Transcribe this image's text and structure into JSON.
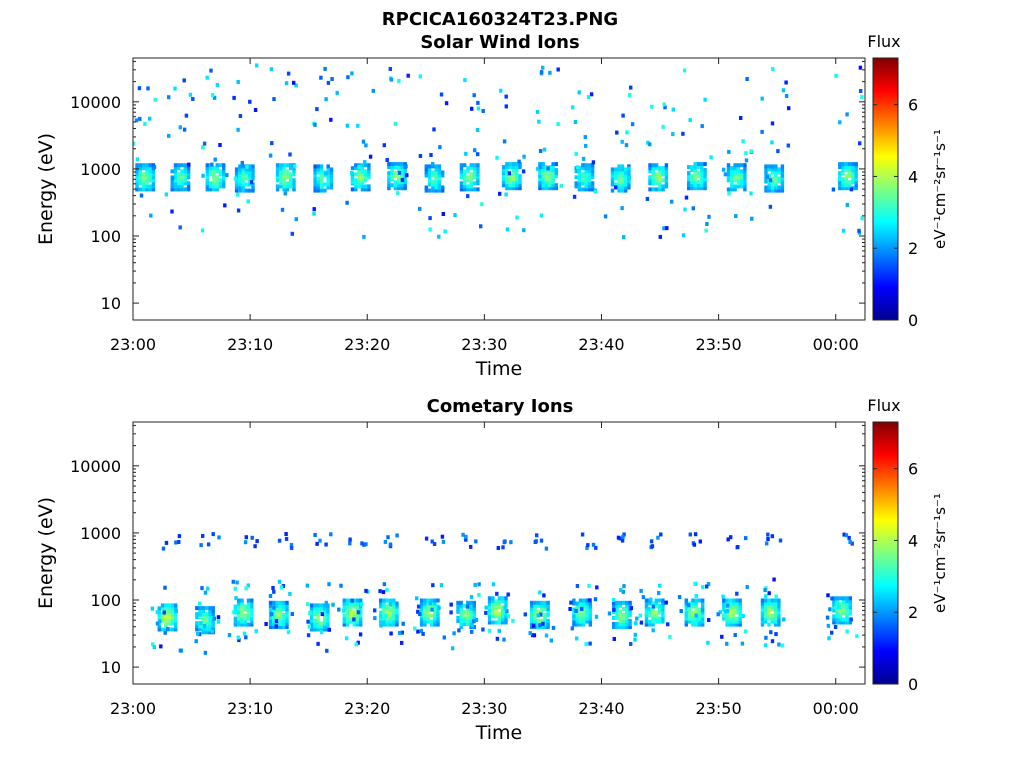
{
  "figure_title": "RPCICA160324T23.PNG",
  "chart_data": [
    {
      "type": "heatmap",
      "title": "Solar Wind Ions",
      "xlabel": "Time",
      "ylabel": "Energy (eV)",
      "x_ticks": [
        "23:00",
        "23:10",
        "23:20",
        "23:30",
        "23:40",
        "23:50",
        "00:00"
      ],
      "x_range_minutes": [
        0,
        62.5
      ],
      "y_scale": "log",
      "y_range": [
        5.6,
        45000
      ],
      "y_ticks": [
        {
          "value": 10,
          "label": "10"
        },
        {
          "value": 100,
          "label": "100"
        },
        {
          "value": 1000,
          "label": "1000"
        },
        {
          "value": 10000,
          "label": "10000"
        }
      ],
      "colorbar": {
        "title": "Flux",
        "label": "eV⁻¹cm⁻²sr⁻¹s⁻¹",
        "range": [
          0,
          7.3
        ],
        "ticks": [
          {
            "value": 0,
            "label": "0"
          },
          {
            "value": 2,
            "label": "2"
          },
          {
            "value": 4,
            "label": "4"
          },
          {
            "value": 6,
            "label": "6"
          }
        ],
        "colormap": "jet"
      },
      "bursts": [
        {
          "t": 0.9,
          "e": 750,
          "flux": 3.9
        },
        {
          "t": 3.9,
          "e": 750,
          "flux": 3.6
        },
        {
          "t": 6.9,
          "e": 750,
          "flux": 4.0
        },
        {
          "t": 9.4,
          "e": 720,
          "flux": 3.7
        },
        {
          "t": 12.9,
          "e": 750,
          "flux": 4.0
        },
        {
          "t": 16.1,
          "e": 720,
          "flux": 3.7
        },
        {
          "t": 19.3,
          "e": 750,
          "flux": 3.9
        },
        {
          "t": 22.4,
          "e": 780,
          "flux": 3.9
        },
        {
          "t": 25.6,
          "e": 720,
          "flux": 3.6
        },
        {
          "t": 28.6,
          "e": 750,
          "flux": 3.9
        },
        {
          "t": 32.2,
          "e": 780,
          "flux": 4.0
        },
        {
          "t": 35.3,
          "e": 780,
          "flux": 4.0
        },
        {
          "t": 38.4,
          "e": 750,
          "flux": 3.6
        },
        {
          "t": 41.5,
          "e": 720,
          "flux": 3.8
        },
        {
          "t": 44.7,
          "e": 750,
          "flux": 4.0
        },
        {
          "t": 48.0,
          "e": 780,
          "flux": 3.9
        },
        {
          "t": 51.4,
          "e": 750,
          "flux": 3.8
        },
        {
          "t": 54.6,
          "e": 720,
          "flux": 3.7
        },
        {
          "t": 60.9,
          "e": 780,
          "flux": 3.9
        }
      ]
    },
    {
      "type": "heatmap",
      "title": "Cometary Ions",
      "xlabel": "Time",
      "ylabel": "Energy (eV)",
      "x_ticks": [
        "23:00",
        "23:10",
        "23:20",
        "23:30",
        "23:40",
        "23:50",
        "00:00"
      ],
      "x_range_minutes": [
        0,
        62.5
      ],
      "y_scale": "log",
      "y_range": [
        5.6,
        45000
      ],
      "y_ticks": [
        {
          "value": 10,
          "label": "10"
        },
        {
          "value": 100,
          "label": "100"
        },
        {
          "value": 1000,
          "label": "1000"
        },
        {
          "value": 10000,
          "label": "10000"
        }
      ],
      "colorbar": {
        "title": "Flux",
        "label": "eV⁻¹cm⁻²sr⁻¹s⁻¹",
        "range": [
          0,
          7.3
        ],
        "ticks": [
          {
            "value": 0,
            "label": "0"
          },
          {
            "value": 2,
            "label": "2"
          },
          {
            "value": 4,
            "label": "4"
          },
          {
            "value": 6,
            "label": "6"
          }
        ],
        "colormap": "jet"
      },
      "bursts": [
        {
          "t": 2.8,
          "e": 55,
          "flux": 4.3
        },
        {
          "t": 6.0,
          "e": 50,
          "flux": 3.8
        },
        {
          "t": 9.3,
          "e": 65,
          "flux": 4.2
        },
        {
          "t": 12.3,
          "e": 60,
          "flux": 4.0
        },
        {
          "t": 15.8,
          "e": 55,
          "flux": 4.1
        },
        {
          "t": 18.6,
          "e": 65,
          "flux": 4.4
        },
        {
          "t": 21.7,
          "e": 65,
          "flux": 4.2
        },
        {
          "t": 25.2,
          "e": 65,
          "flux": 4.2
        },
        {
          "t": 28.3,
          "e": 60,
          "flux": 3.9
        },
        {
          "t": 31.0,
          "e": 70,
          "flux": 4.3
        },
        {
          "t": 34.6,
          "e": 60,
          "flux": 4.2
        },
        {
          "t": 38.2,
          "e": 65,
          "flux": 4.0
        },
        {
          "t": 41.6,
          "e": 60,
          "flux": 4.0
        },
        {
          "t": 44.4,
          "e": 65,
          "flux": 4.1
        },
        {
          "t": 47.8,
          "e": 65,
          "flux": 4.2
        },
        {
          "t": 51.0,
          "e": 65,
          "flux": 4.3
        },
        {
          "t": 54.3,
          "e": 65,
          "flux": 4.2
        },
        {
          "t": 60.4,
          "e": 70,
          "flux": 4.0
        }
      ],
      "upper_band_eV": 750
    }
  ]
}
